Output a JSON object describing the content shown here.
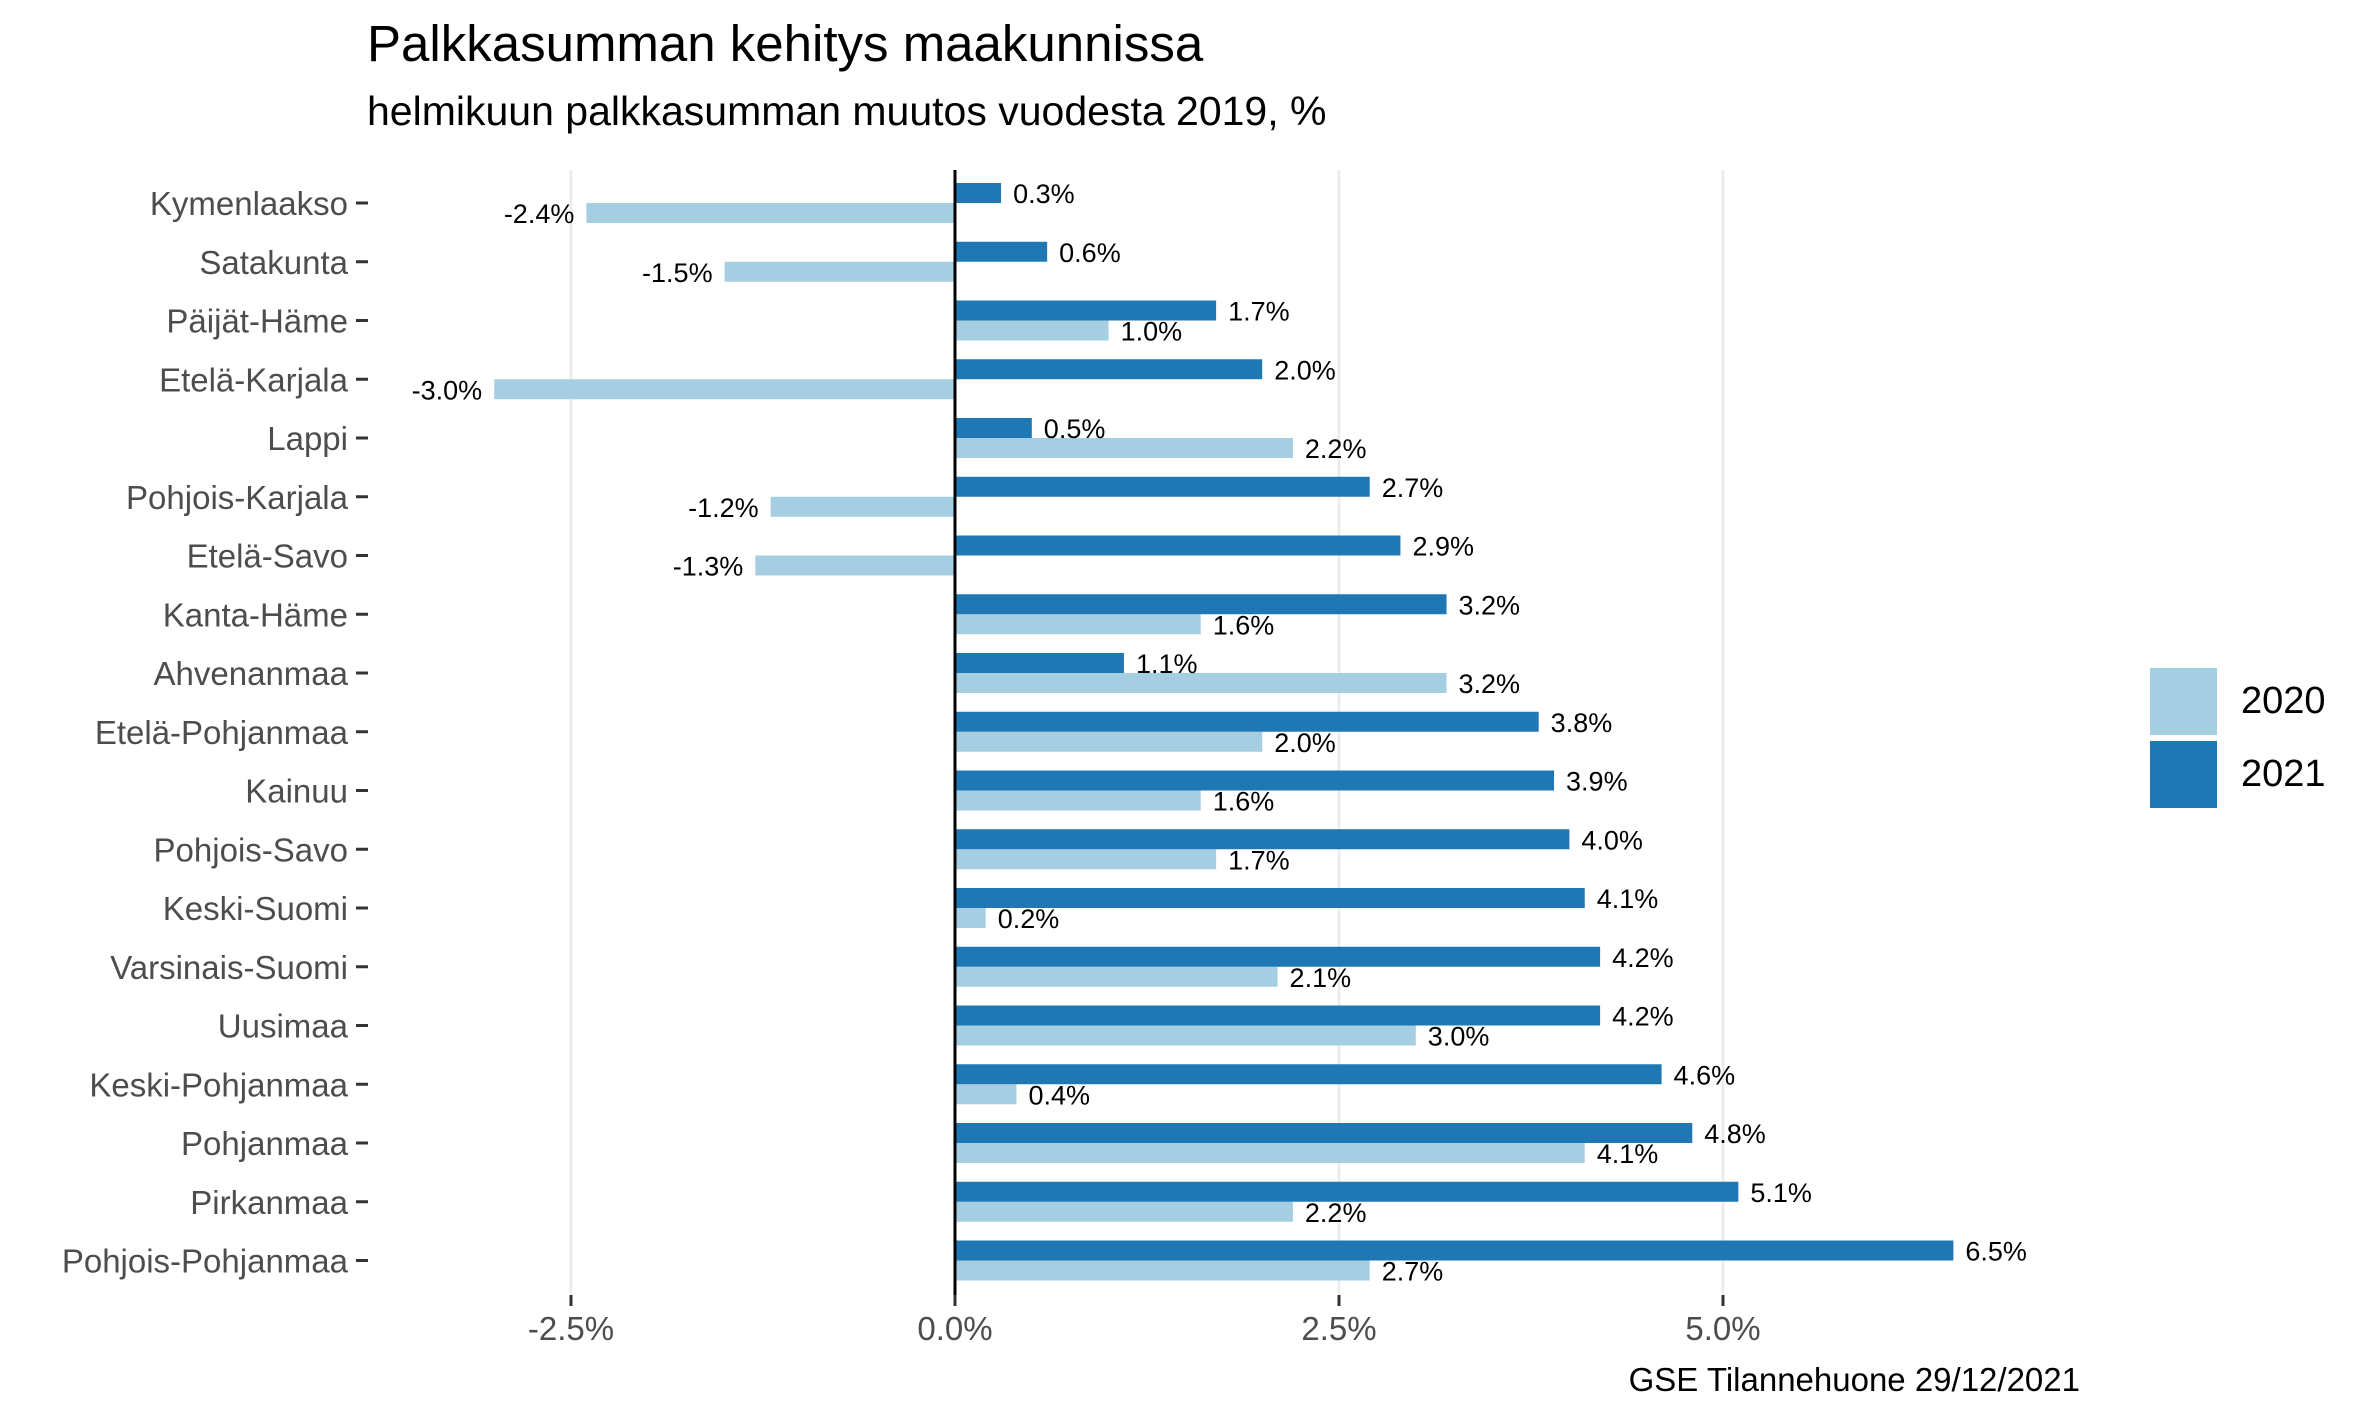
{
  "title": "Palkkasumman kehitys maakunnissa",
  "subtitle": "helmikuun palkkasumman muutos vuodesta 2019, %",
  "caption": "GSE Tilannehuone 29/12/2021",
  "chart_data": {
    "type": "bar",
    "orientation": "horizontal",
    "categories": [
      "Kymenlaakso",
      "Satakunta",
      "Päijät-Häme",
      "Etelä-Karjala",
      "Lappi",
      "Pohjois-Karjala",
      "Etelä-Savo",
      "Kanta-Häme",
      "Ahvenanmaa",
      "Etelä-Pohjanmaa",
      "Kainuu",
      "Pohjois-Savo",
      "Keski-Suomi",
      "Varsinais-Suomi",
      "Uusimaa",
      "Keski-Pohjanmaa",
      "Pohjanmaa",
      "Pirkanmaa",
      "Pohjois-Pohjanmaa"
    ],
    "series": [
      {
        "name": "2020",
        "color": "#a6cee3",
        "values": [
          -2.4,
          -1.5,
          1.0,
          -3.0,
          2.2,
          -1.2,
          -1.3,
          1.6,
          3.2,
          2.0,
          1.6,
          1.7,
          0.2,
          2.1,
          3.0,
          0.4,
          4.1,
          2.2,
          2.7
        ],
        "labels": [
          "-2.4%",
          "-1.5%",
          "1.0%",
          "-3.0%",
          "2.2%",
          "-1.2%",
          "-1.3%",
          "1.6%",
          "3.2%",
          "2.0%",
          "1.6%",
          "1.7%",
          "0.2%",
          "2.1%",
          "3.0%",
          "0.4%",
          "4.1%",
          "2.2%",
          "2.7%"
        ]
      },
      {
        "name": "2021",
        "color": "#1f78b4",
        "values": [
          0.3,
          0.6,
          1.7,
          2.0,
          0.5,
          2.7,
          2.9,
          3.2,
          1.1,
          3.8,
          3.9,
          4.0,
          4.1,
          4.2,
          4.2,
          4.6,
          4.8,
          5.1,
          6.5
        ],
        "labels": [
          "0.3%",
          "0.6%",
          "1.7%",
          "2.0%",
          "0.5%",
          "2.7%",
          "2.9%",
          "3.2%",
          "1.1%",
          "3.8%",
          "3.9%",
          "4.0%",
          "4.1%",
          "4.2%",
          "4.2%",
          "4.6%",
          "4.8%",
          "5.1%",
          "6.5%"
        ]
      }
    ],
    "xlim": [
      -3.5,
      7.0
    ],
    "x_ticks": [
      -2.5,
      0.0,
      2.5,
      5.0
    ],
    "x_tick_labels": [
      "-2.5%",
      "0.0%",
      "2.5%",
      "5.0%"
    ],
    "grid": true,
    "legend_position": "right"
  }
}
